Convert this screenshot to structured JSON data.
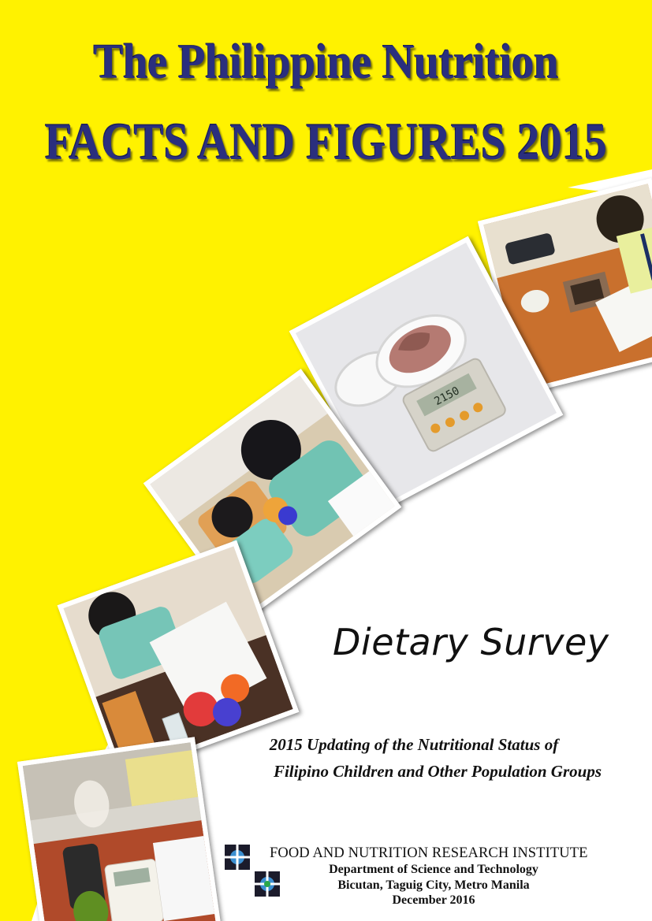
{
  "cover": {
    "title_line1": "The Philippine Nutrition",
    "title_line2": "FACTS AND FIGURES 2015",
    "survey_title": "Dietary Survey",
    "subtitle_line1": "2015 Updating of the Nutritional Status of",
    "subtitle_line2": "Filipino Children and Other Population Groups",
    "institute_name": "FOOD AND NUTRITION RESEARCH INSTITUTE",
    "department": "Department of Science and Technology",
    "address": "Bicutan, Taguig City, Metro Manila",
    "date": "December 2016",
    "scale_display": "2150"
  },
  "colors": {
    "background_yellow": "#fff200",
    "title_navy": "#2a2f7e",
    "white_band": "#ffffff",
    "logo_dark": "#1b1b2b",
    "logo_blue": "#3b8fd1"
  },
  "photos": [
    {
      "name": "photo-weighing-food-on-scale",
      "icon": "hand-on-scale"
    },
    {
      "name": "photo-measuring-cup-at-table",
      "icon": "food-models"
    },
    {
      "name": "photo-woman-with-food-models",
      "icon": "interview"
    },
    {
      "name": "photo-chicken-on-digital-scale",
      "icon": "chicken-scale"
    },
    {
      "name": "photo-researcher-recording-weights",
      "icon": "recording"
    }
  ]
}
